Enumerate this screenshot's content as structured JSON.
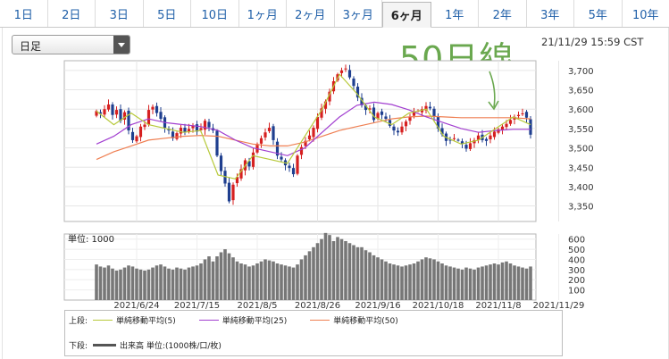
{
  "tabs": [
    {
      "label": "1日"
    },
    {
      "label": "2日"
    },
    {
      "label": "3日"
    },
    {
      "label": "5日"
    },
    {
      "label": "10日"
    },
    {
      "label": "1ヶ月"
    },
    {
      "label": "2ヶ月"
    },
    {
      "label": "3ヶ月"
    },
    {
      "label": "6ヶ月",
      "active": true
    },
    {
      "label": "1年"
    },
    {
      "label": "2年"
    },
    {
      "label": "3年"
    },
    {
      "label": "5年"
    },
    {
      "label": "10年"
    }
  ],
  "dropdown": {
    "selected": "日足"
  },
  "timestamp": "21/11/29 15:59 CST",
  "annotation": {
    "text": "50日線",
    "color": "#6aa84f"
  },
  "colors": {
    "up": "#d62020",
    "down": "#1f3f8f",
    "ma5": "#b7c93a",
    "ma25": "#a23fd0",
    "ma50": "#ef7f52",
    "volume": "#777777"
  },
  "legend": {
    "upper_label": "上段:",
    "items": [
      {
        "label": "単純移動平均(5)",
        "color": "#b7c93a"
      },
      {
        "label": "単純移動平均(25)",
        "color": "#a23fd0"
      },
      {
        "label": "単純移動平均(50)",
        "color": "#ef7f52"
      }
    ],
    "lower_label": "下段:",
    "lower_item": {
      "label": "出来高 単位:(1000株/口/枚)",
      "color": "#555555"
    }
  },
  "chart_data": {
    "type": "candlestick",
    "price_axis": {
      "ticks": [
        3350,
        3400,
        3450,
        3500,
        3550,
        3600,
        3650,
        3700
      ],
      "labels": [
        "3,350",
        "3,400",
        "3,450",
        "3,500",
        "3,550",
        "3,600",
        "3,650",
        "3,700"
      ],
      "ylim": [
        3310,
        3725
      ]
    },
    "volume_axis": {
      "unit_label": "単位: 1000",
      "ticks": [
        100,
        200,
        300,
        400,
        500,
        600
      ],
      "ylim": [
        0,
        650
      ]
    },
    "x_tick_labels": [
      "2021/6/24",
      "2021/7/15",
      "2021/8/5",
      "2021/8/26",
      "2021/9/16",
      "2021/10/18",
      "2021/11/8",
      "2021/11/29"
    ],
    "x_tick_index": [
      10,
      25,
      40,
      55,
      70,
      85,
      100,
      115
    ],
    "closes": [
      3595,
      3588,
      3600,
      3612,
      3585,
      3598,
      3570,
      3592,
      3545,
      3520,
      3530,
      3555,
      3560,
      3598,
      3606,
      3590,
      3575,
      3552,
      3545,
      3525,
      3538,
      3552,
      3541,
      3549,
      3558,
      3542,
      3551,
      3570,
      3553,
      3545,
      3480,
      3440,
      3408,
      3362,
      3405,
      3425,
      3445,
      3468,
      3452,
      3488,
      3510,
      3525,
      3540,
      3552,
      3520,
      3480,
      3470,
      3455,
      3448,
      3432,
      3480,
      3502,
      3518,
      3532,
      3552,
      3580,
      3602,
      3620,
      3645,
      3672,
      3690,
      3700,
      3705,
      3682,
      3660,
      3630,
      3610,
      3598,
      3602,
      3572,
      3590,
      3585,
      3575,
      3557,
      3545,
      3540,
      3555,
      3568,
      3580,
      3592,
      3596,
      3600,
      3608,
      3602,
      3580,
      3550,
      3535,
      3518,
      3520,
      3525,
      3520,
      3510,
      3498,
      3512,
      3520,
      3532,
      3520,
      3518,
      3532,
      3542,
      3548,
      3555,
      3562,
      3572,
      3580,
      3585,
      3589,
      3578,
      3534
    ],
    "ma_values_sampled": {
      "ma5": [
        3595,
        3560,
        3590,
        3560,
        3550,
        3540,
        3545,
        3430,
        3420,
        3480,
        3470,
        3460,
        3530,
        3600,
        3690,
        3640,
        3580,
        3560,
        3590,
        3600,
        3530,
        3510,
        3520,
        3550,
        3580,
        3560
      ],
      "ma25": [
        3510,
        3530,
        3560,
        3575,
        3565,
        3560,
        3555,
        3545,
        3520,
        3500,
        3490,
        3480,
        3500,
        3540,
        3580,
        3610,
        3618,
        3612,
        3598,
        3580,
        3565,
        3550,
        3540,
        3545,
        3548,
        3548
      ],
      "ma50": [
        3470,
        3490,
        3505,
        3520,
        3525,
        3530,
        3532,
        3530,
        3520,
        3510,
        3505,
        3505,
        3515,
        3530,
        3545,
        3555,
        3565,
        3575,
        3580,
        3582,
        3580,
        3578,
        3578,
        3578,
        3578,
        3575
      ]
    },
    "volumes": [
      350,
      330,
      320,
      340,
      310,
      290,
      300,
      320,
      340,
      330,
      310,
      300,
      290,
      300,
      320,
      340,
      350,
      330,
      310,
      300,
      320,
      310,
      300,
      320,
      330,
      340,
      360,
      400,
      430,
      380,
      430,
      470,
      500,
      460,
      420,
      380,
      360,
      350,
      330,
      340,
      360,
      380,
      400,
      390,
      380,
      360,
      350,
      340,
      330,
      320,
      350,
      400,
      440,
      480,
      520,
      560,
      600,
      660,
      640,
      580,
      620,
      600,
      580,
      560,
      540,
      520,
      520,
      490,
      470,
      440,
      420,
      400,
      380,
      360,
      350,
      340,
      330,
      340,
      350,
      360,
      380,
      400,
      420,
      410,
      400,
      380,
      360,
      340,
      330,
      320,
      310,
      300,
      320,
      310,
      300,
      320,
      330,
      340,
      350,
      360,
      350,
      370,
      380,
      360,
      340,
      330,
      320,
      310,
      330,
      340,
      350
    ]
  }
}
